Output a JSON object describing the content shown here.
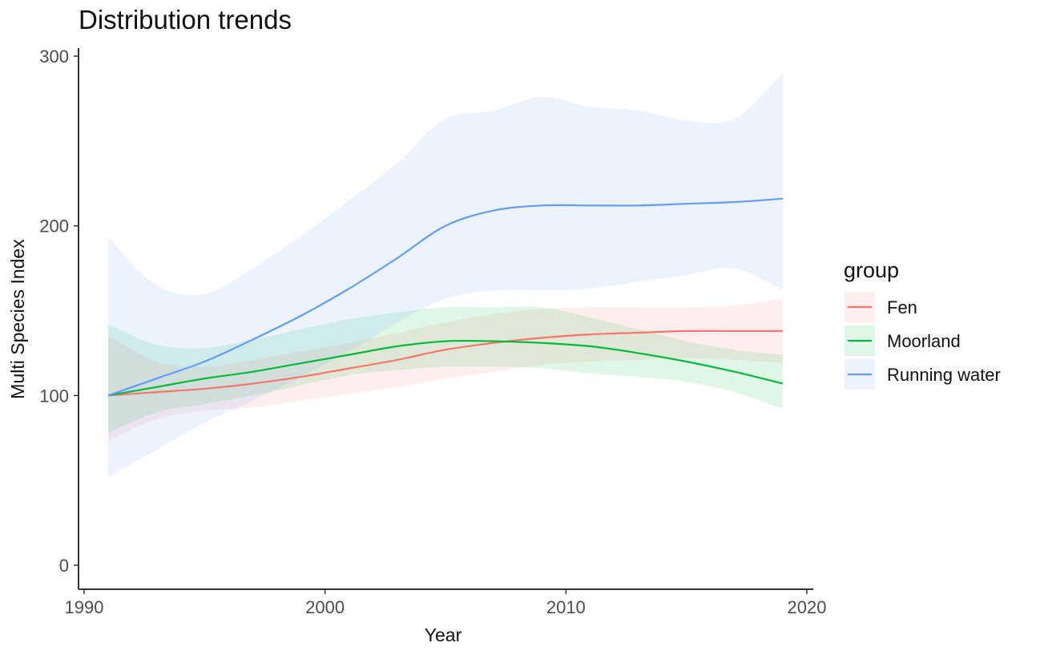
{
  "chart_data": {
    "type": "area",
    "title": "Distribution trends",
    "xlabel": "Year",
    "ylabel": "Multi Species Index",
    "xlim": [
      1990,
      2020
    ],
    "ylim": [
      0,
      300
    ],
    "x_ticks": [
      1990,
      2000,
      2010,
      2020
    ],
    "y_ticks": [
      0,
      100,
      200,
      300
    ],
    "grid": false,
    "legend": {
      "title": "group",
      "position": "right"
    },
    "x": [
      1991,
      1993,
      1995,
      1997,
      1999,
      2001,
      2003,
      2005,
      2007,
      2009,
      2011,
      2013,
      2015,
      2017,
      2019
    ],
    "series": [
      {
        "name": "Fen",
        "color": "#F8766D",
        "values": [
          100,
          102,
          104,
          107,
          111,
          116,
          121,
          127,
          131,
          134,
          136,
          137,
          138,
          138,
          138
        ],
        "lower": [
          73,
          86,
          91,
          93,
          97,
          101,
          105,
          110,
          114,
          118,
          120,
          121,
          122,
          121,
          119
        ],
        "upper": [
          135,
          120,
          117,
          121,
          126,
          131,
          137,
          143,
          148,
          151,
          152,
          152,
          152,
          153,
          157
        ]
      },
      {
        "name": "Moorland",
        "color": "#00BA38",
        "values": [
          100,
          105,
          110,
          114,
          119,
          124,
          129,
          132,
          132,
          131,
          129,
          125,
          120,
          114,
          107
        ],
        "lower": [
          78,
          90,
          95,
          100,
          106,
          112,
          115,
          117,
          117,
          116,
          113,
          111,
          108,
          102,
          92
        ],
        "upper": [
          142,
          130,
          128,
          133,
          139,
          145,
          149,
          152,
          152,
          152,
          146,
          139,
          132,
          127,
          124
        ]
      },
      {
        "name": "Running water",
        "color": "#619CFF",
        "values": [
          100,
          110,
          120,
          133,
          147,
          163,
          181,
          200,
          209,
          212,
          212,
          212,
          213,
          214,
          216
        ],
        "lower": [
          52,
          68,
          84,
          97,
          111,
          126,
          143,
          157,
          162,
          162,
          163,
          167,
          171,
          175,
          162
        ],
        "upper": [
          193,
          165,
          160,
          175,
          194,
          215,
          237,
          263,
          268,
          276,
          270,
          268,
          262,
          263,
          290
        ]
      }
    ]
  }
}
